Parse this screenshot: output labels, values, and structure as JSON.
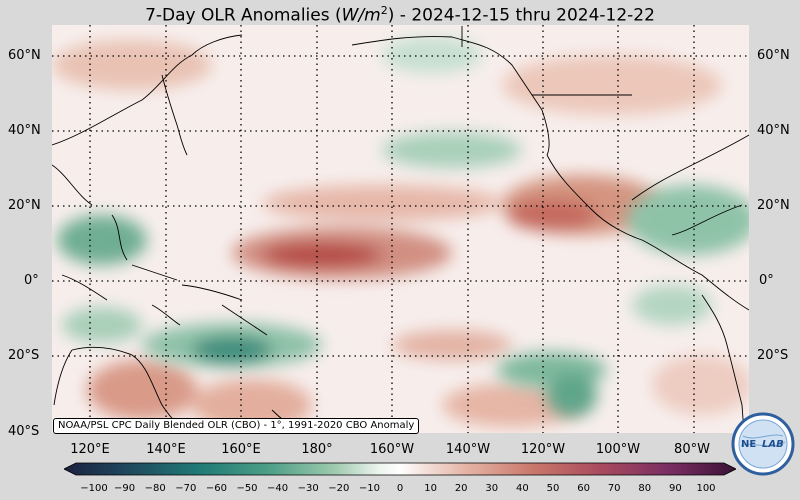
{
  "title": {
    "prefix": "7-Day OLR Anomalies (",
    "unit_main": "W/m",
    "unit_exp": "2",
    "suffix": ") - 2024-12-15 thru 2024-12-22"
  },
  "lat_labels": [
    "60°N",
    "40°N",
    "20°N",
    "0°",
    "20°S",
    "40°S"
  ],
  "lon_labels": [
    "120°E",
    "140°E",
    "160°E",
    "180°",
    "160°W",
    "140°W",
    "120°W",
    "100°W",
    "80°W"
  ],
  "credit": "NOAA/PSL CPC Daily Blended OLR (CBO) - 1°, 1991-2020 CBO Anomaly",
  "colorbar_ticks": [
    "−100",
    "−90",
    "−80",
    "−70",
    "−60",
    "−50",
    "−40",
    "−30",
    "−20",
    "−10",
    "0",
    "10",
    "20",
    "30",
    "40",
    "50",
    "60",
    "70",
    "80",
    "90",
    "100"
  ],
  "logo": {
    "text_left": "NE",
    "text_right": "LAB"
  },
  "colors": {
    "negative_anomaly": "#2f8f6f",
    "positive_anomaly": "#c1584e",
    "neutral": "#f7eeec",
    "background": "#d9d9d9"
  }
}
